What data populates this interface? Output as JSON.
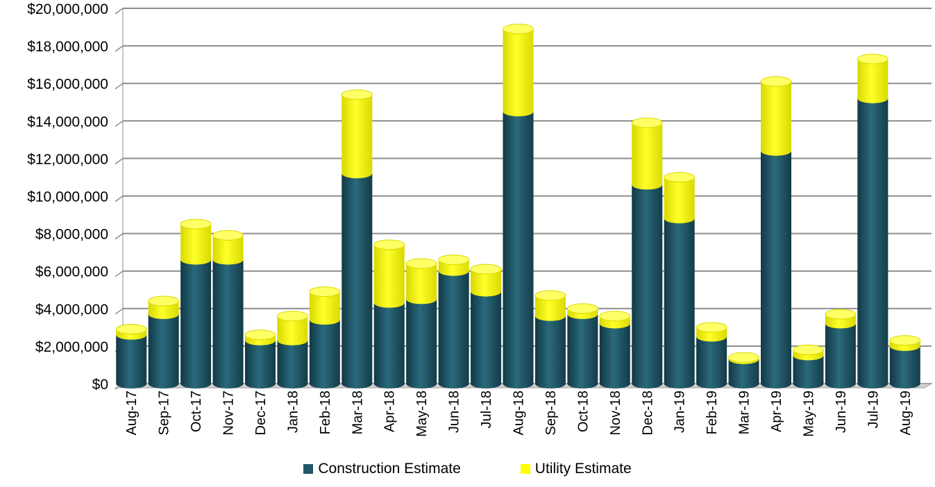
{
  "chart_data": {
    "type": "bar",
    "stacked": true,
    "categories": [
      "Aug-17",
      "Sep-17",
      "Oct-17",
      "Nov-17",
      "Dec-17",
      "Jan-18",
      "Feb-18",
      "Mar-18",
      "Apr-18",
      "May-18",
      "Jun-18",
      "Jul-18",
      "Aug-18",
      "Sep-18",
      "Oct-18",
      "Nov-18",
      "Dec-18",
      "Jan-19",
      "Feb-19",
      "Mar-19",
      "Apr-19",
      "May-19",
      "Jun-19",
      "Jul-19",
      "Aug-19"
    ],
    "series": [
      {
        "name": "Construction Estimate",
        "color": "#215868",
        "values": [
          2600000,
          3700000,
          6600000,
          6600000,
          2300000,
          2300000,
          3400000,
          11200000,
          4300000,
          4500000,
          6000000,
          4900000,
          14500000,
          3600000,
          3700000,
          3200000,
          10600000,
          8800000,
          2500000,
          1300000,
          12400000,
          1500000,
          3200000,
          15200000,
          2000000
        ]
      },
      {
        "name": "Utility Estimate",
        "color": "#ffff00",
        "values": [
          300000,
          700000,
          1900000,
          1300000,
          300000,
          1300000,
          1500000,
          4200000,
          3100000,
          1900000,
          600000,
          1200000,
          4400000,
          1100000,
          300000,
          400000,
          3300000,
          2200000,
          500000,
          100000,
          3700000,
          300000,
          500000,
          2100000,
          300000
        ]
      }
    ],
    "yticks": [
      "$0",
      "$2,000,000",
      "$4,000,000",
      "$6,000,000",
      "$8,000,000",
      "$10,000,000",
      "$12,000,000",
      "$14,000,000",
      "$16,000,000",
      "$18,000,000",
      "$20,000,000"
    ],
    "ylim": [
      0,
      20000000
    ],
    "grid": true,
    "legend_position": "bottom"
  }
}
